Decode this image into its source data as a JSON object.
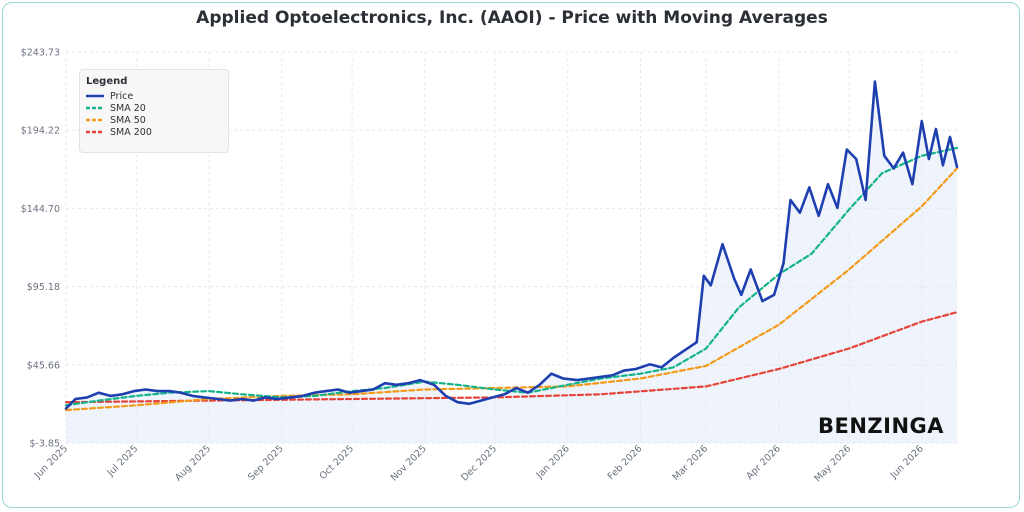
{
  "chart_data": {
    "type": "line",
    "title": "Applied Optoelectronics, Inc. (AAOI) - Price with Moving Averages",
    "ylim": [
      -3.85,
      243.73
    ],
    "y_ticks": [
      "$243.73",
      "$194.22",
      "$144.70",
      "$95.18",
      "$45.66",
      "$-3.85"
    ],
    "y_tick_values": [
      243.73,
      194.22,
      144.7,
      95.18,
      45.66,
      -3.85
    ],
    "x_ticks": [
      "Jun 2025",
      "Jul 2025",
      "Aug 2025",
      "Sep 2025",
      "Oct 2025",
      "Nov 2025",
      "Dec 2025",
      "Jan 2026",
      "Feb 2026",
      "Mar 2026",
      "Apr 2026",
      "May 2026",
      "Jun 2026"
    ],
    "x_range": [
      "2025-06-01",
      "2026-06-16"
    ],
    "grid": true,
    "legend_placement": "top-left",
    "legend_title": "Legend",
    "series": [
      {
        "name": "Price",
        "color": "#1e3fb0",
        "style": "solid",
        "values": [
          [
            "2025-06-01",
            18
          ],
          [
            "2025-06-05",
            24
          ],
          [
            "2025-06-10",
            25
          ],
          [
            "2025-06-15",
            28
          ],
          [
            "2025-06-20",
            26
          ],
          [
            "2025-06-25",
            27
          ],
          [
            "2025-06-30",
            29
          ],
          [
            "2025-07-05",
            30
          ],
          [
            "2025-07-10",
            29
          ],
          [
            "2025-07-15",
            29
          ],
          [
            "2025-07-20",
            28
          ],
          [
            "2025-07-25",
            26
          ],
          [
            "2025-07-30",
            25
          ],
          [
            "2025-08-05",
            24
          ],
          [
            "2025-08-10",
            23
          ],
          [
            "2025-08-15",
            24
          ],
          [
            "2025-08-20",
            23
          ],
          [
            "2025-08-25",
            25
          ],
          [
            "2025-08-30",
            24
          ],
          [
            "2025-09-05",
            25
          ],
          [
            "2025-09-10",
            26
          ],
          [
            "2025-09-15",
            28
          ],
          [
            "2025-09-20",
            29
          ],
          [
            "2025-09-25",
            30
          ],
          [
            "2025-09-30",
            28
          ],
          [
            "2025-10-05",
            29
          ],
          [
            "2025-10-10",
            30
          ],
          [
            "2025-10-15",
            34
          ],
          [
            "2025-10-20",
            33
          ],
          [
            "2025-10-25",
            34
          ],
          [
            "2025-10-30",
            36
          ],
          [
            "2025-11-05",
            33
          ],
          [
            "2025-11-10",
            26
          ],
          [
            "2025-11-15",
            22
          ],
          [
            "2025-11-20",
            21
          ],
          [
            "2025-11-25",
            23
          ],
          [
            "2025-11-30",
            25
          ],
          [
            "2025-12-05",
            27
          ],
          [
            "2025-12-10",
            31
          ],
          [
            "2025-12-15",
            28
          ],
          [
            "2025-12-20",
            33
          ],
          [
            "2025-12-25",
            40
          ],
          [
            "2025-12-30",
            37
          ],
          [
            "2026-01-05",
            36
          ],
          [
            "2026-01-10",
            37
          ],
          [
            "2026-01-15",
            38
          ],
          [
            "2026-01-20",
            39
          ],
          [
            "2026-01-25",
            42
          ],
          [
            "2026-01-30",
            43
          ],
          [
            "2026-02-05",
            46
          ],
          [
            "2026-02-10",
            44
          ],
          [
            "2026-02-15",
            50
          ],
          [
            "2026-02-20",
            55
          ],
          [
            "2026-02-25",
            60
          ],
          [
            "2026-02-28",
            102
          ],
          [
            "2026-03-03",
            96
          ],
          [
            "2026-03-08",
            122
          ],
          [
            "2026-03-13",
            100
          ],
          [
            "2026-03-16",
            90
          ],
          [
            "2026-03-20",
            106
          ],
          [
            "2026-03-25",
            86
          ],
          [
            "2026-03-30",
            90
          ],
          [
            "2026-04-03",
            110
          ],
          [
            "2026-04-06",
            150
          ],
          [
            "2026-04-10",
            142
          ],
          [
            "2026-04-14",
            158
          ],
          [
            "2026-04-18",
            140
          ],
          [
            "2026-04-22",
            160
          ],
          [
            "2026-04-26",
            145
          ],
          [
            "2026-04-30",
            182
          ],
          [
            "2026-05-04",
            176
          ],
          [
            "2026-05-08",
            150
          ],
          [
            "2026-05-12",
            225
          ],
          [
            "2026-05-16",
            178
          ],
          [
            "2026-05-20",
            170
          ],
          [
            "2026-05-24",
            180
          ],
          [
            "2026-05-28",
            160
          ],
          [
            "2026-06-01",
            200
          ],
          [
            "2026-06-04",
            176
          ],
          [
            "2026-06-07",
            195
          ],
          [
            "2026-06-10",
            172
          ],
          [
            "2026-06-13",
            190
          ],
          [
            "2026-06-16",
            171
          ]
        ]
      },
      {
        "name": "SMA 20",
        "color": "#14b38a",
        "style": "dashed",
        "values": [
          [
            "2025-06-01",
            20
          ],
          [
            "2025-06-15",
            23
          ],
          [
            "2025-07-01",
            26
          ],
          [
            "2025-07-15",
            28
          ],
          [
            "2025-08-01",
            29
          ],
          [
            "2025-08-15",
            27
          ],
          [
            "2025-09-01",
            25
          ],
          [
            "2025-09-15",
            26
          ],
          [
            "2025-10-01",
            29
          ],
          [
            "2025-10-15",
            31
          ],
          [
            "2025-11-01",
            35
          ],
          [
            "2025-11-15",
            33
          ],
          [
            "2025-12-01",
            30
          ],
          [
            "2025-12-15",
            28
          ],
          [
            "2026-01-01",
            33
          ],
          [
            "2026-01-15",
            37
          ],
          [
            "2026-02-01",
            40
          ],
          [
            "2026-02-15",
            44
          ],
          [
            "2026-03-01",
            56
          ],
          [
            "2026-03-15",
            82
          ],
          [
            "2026-04-01",
            103
          ],
          [
            "2026-04-15",
            116
          ],
          [
            "2026-05-01",
            144
          ],
          [
            "2026-05-15",
            167
          ],
          [
            "2026-06-01",
            178
          ],
          [
            "2026-06-16",
            183
          ]
        ]
      },
      {
        "name": "SMA 50",
        "color": "#f29b1a",
        "style": "dashed",
        "values": [
          [
            "2025-06-01",
            17
          ],
          [
            "2025-07-01",
            20
          ],
          [
            "2025-08-01",
            24
          ],
          [
            "2025-09-01",
            26
          ],
          [
            "2025-10-01",
            27
          ],
          [
            "2025-11-01",
            30
          ],
          [
            "2025-12-01",
            31
          ],
          [
            "2026-01-01",
            32
          ],
          [
            "2026-02-01",
            37
          ],
          [
            "2026-03-01",
            45
          ],
          [
            "2026-04-01",
            71
          ],
          [
            "2026-05-01",
            106
          ],
          [
            "2026-06-01",
            146
          ],
          [
            "2026-06-16",
            170
          ]
        ]
      },
      {
        "name": "SMA 200",
        "color": "#e4443a",
        "style": "dashed",
        "values": [
          [
            "2025-06-01",
            22
          ],
          [
            "2025-08-01",
            23
          ],
          [
            "2025-10-01",
            24
          ],
          [
            "2025-12-01",
            25
          ],
          [
            "2026-01-15",
            27
          ],
          [
            "2026-03-01",
            32
          ],
          [
            "2026-04-01",
            43
          ],
          [
            "2026-05-01",
            56
          ],
          [
            "2026-06-01",
            73
          ],
          [
            "2026-06-16",
            79
          ]
        ]
      }
    ]
  },
  "brand": "BENZINGA"
}
